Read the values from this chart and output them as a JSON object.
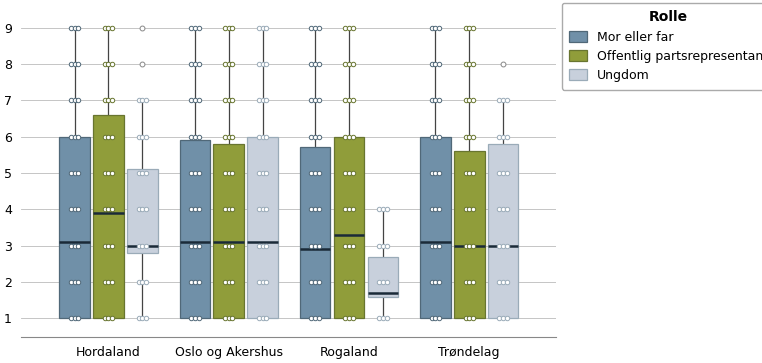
{
  "regions": [
    "Hordaland",
    "Oslo og Akershus",
    "Rogaland",
    "Trøndelag"
  ],
  "roles": [
    "Mor eller far",
    "Offentlig partsrepresentant",
    "Ungdom"
  ],
  "colors": [
    "#7090a8",
    "#909d3a",
    "#c8d0dc"
  ],
  "edge_colors": [
    "#506878",
    "#687530",
    "#9aabb8"
  ],
  "ylim": [
    0.5,
    9.5
  ],
  "yticks": [
    1,
    2,
    3,
    4,
    5,
    6,
    7,
    8,
    9
  ],
  "box_width": 0.28,
  "group_centers": [
    0,
    1.1,
    2.2,
    3.3
  ],
  "offsets": [
    -0.31,
    0.0,
    0.31
  ],
  "boxes": {
    "Hordaland": {
      "Mor eller far": {
        "whislo": 1,
        "q1": 1,
        "med": 3.1,
        "q3": 6.0,
        "whishi": 9
      },
      "Offentlig partsrepresentant": {
        "whislo": 1,
        "q1": 1,
        "med": 3.9,
        "q3": 6.6,
        "whishi": 9
      },
      "Ungdom": {
        "whislo": 1,
        "q1": 2.8,
        "med": 3.0,
        "q3": 5.1,
        "whishi": 7,
        "outliers_high": [
          8,
          9
        ]
      }
    },
    "Oslo og Akershus": {
      "Mor eller far": {
        "whislo": 1,
        "q1": 1,
        "med": 3.1,
        "q3": 5.9,
        "whishi": 9
      },
      "Offentlig partsrepresentant": {
        "whislo": 1,
        "q1": 1,
        "med": 3.1,
        "q3": 5.8,
        "whishi": 9
      },
      "Ungdom": {
        "whislo": 1,
        "q1": 1,
        "med": 3.1,
        "q3": 6.0,
        "whishi": 9
      }
    },
    "Rogaland": {
      "Mor eller far": {
        "whislo": 1,
        "q1": 1,
        "med": 2.9,
        "q3": 5.7,
        "whishi": 9
      },
      "Offentlig partsrepresentant": {
        "whislo": 1,
        "q1": 1,
        "med": 3.3,
        "q3": 6.0,
        "whishi": 9
      },
      "Ungdom": {
        "whislo": 1,
        "q1": 1.6,
        "med": 1.7,
        "q3": 2.7,
        "whishi": 4
      }
    },
    "Trøndelag": {
      "Mor eller far": {
        "whislo": 1,
        "q1": 1,
        "med": 3.1,
        "q3": 6.0,
        "whishi": 9
      },
      "Offentlig partsrepresentant": {
        "whislo": 1,
        "q1": 1,
        "med": 3.0,
        "q3": 5.6,
        "whishi": 9
      },
      "Ungdom": {
        "whislo": 1,
        "q1": 1,
        "med": 3.0,
        "q3": 5.8,
        "whishi": 7,
        "outliers_high": [
          8
        ]
      }
    }
  },
  "legend_title": "Rolle",
  "background_color": "#ffffff",
  "grid_color": "#bbbbbb",
  "median_color": "#1a2a38",
  "whisker_color": "#444444"
}
